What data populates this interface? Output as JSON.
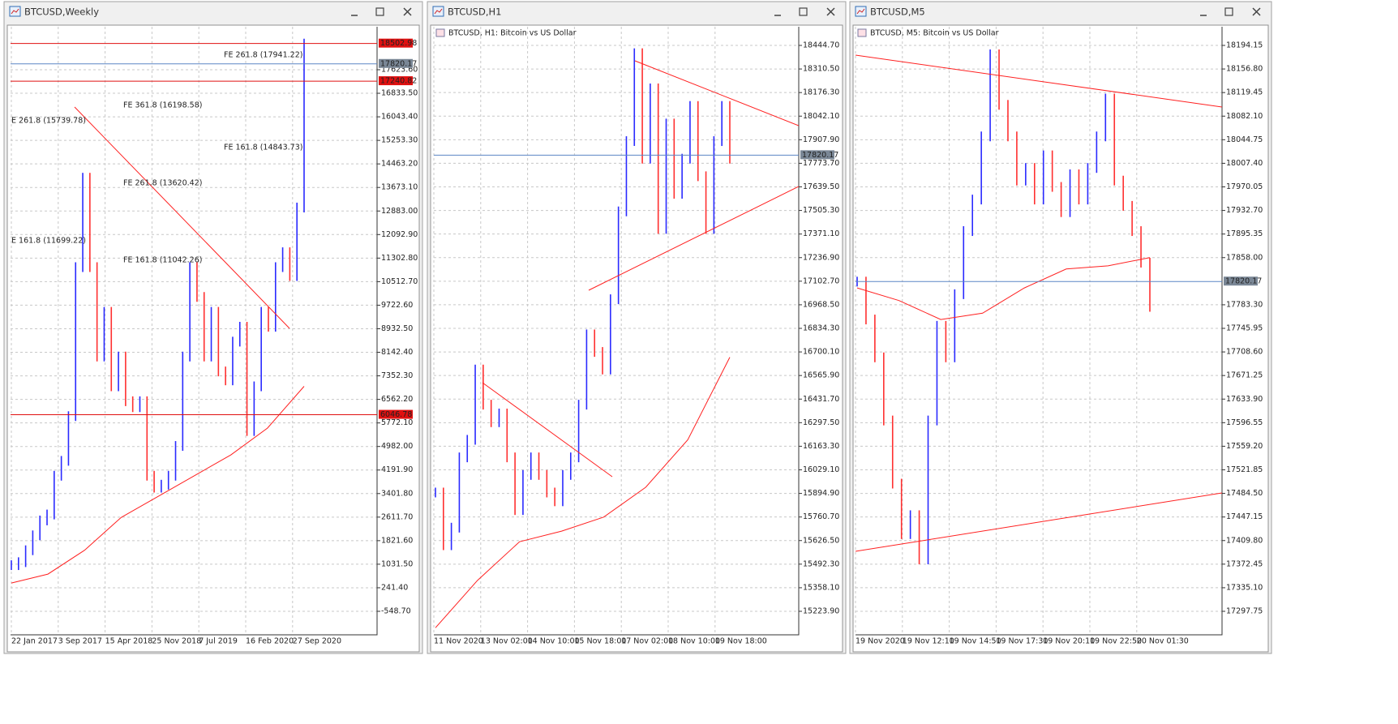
{
  "windows": [
    {
      "title": "BTCUSD,Weekly",
      "yticks": [
        {
          "value": 17623.6,
          "label": "17623.60"
        },
        {
          "value": 16833.5,
          "label": "16833.50"
        },
        {
          "value": 16043.4,
          "label": "16043.40"
        },
        {
          "value": 15253.3,
          "label": "15253.30"
        },
        {
          "value": 14463.2,
          "label": "14463.20"
        },
        {
          "value": 13673.1,
          "label": "13673.10"
        },
        {
          "value": 12883,
          "label": "12883.00"
        },
        {
          "value": 12092.9,
          "label": "12092.90"
        },
        {
          "value": 11302.8,
          "label": "11302.80"
        },
        {
          "value": 10512.7,
          "label": "10512.70"
        },
        {
          "value": 9722.6,
          "label": "9722.60"
        },
        {
          "value": 8932.5,
          "label": "8932.50"
        },
        {
          "value": 8142.4,
          "label": "8142.40"
        },
        {
          "value": 7352.3,
          "label": "7352.30"
        },
        {
          "value": 6562.2,
          "label": "6562.20"
        },
        {
          "value": 5772.1,
          "label": "5772.10"
        },
        {
          "value": 4982,
          "label": "4982.00"
        },
        {
          "value": 4191.9,
          "label": "4191.90"
        },
        {
          "value": 3401.8,
          "label": "3401.80"
        },
        {
          "value": 2611.7,
          "label": "2611.70"
        },
        {
          "value": 1821.6,
          "label": "1821.60"
        },
        {
          "value": 1031.5,
          "label": "1031.50"
        },
        {
          "value": 241.4,
          "label": "241.40"
        },
        {
          "value": -548.7,
          "label": "-548.70"
        }
      ],
      "xlabels": [
        "22 Jan 2017",
        "3 Sep 2017",
        "15 Apr 2018",
        "25 Nov 2018",
        "7 Jul 2019",
        "16 Feb 2020",
        "27 Sep 2020"
      ],
      "levels": [
        {
          "value": 18502.98,
          "label": "18502.98",
          "color": "#e01010"
        },
        {
          "value": 17820.17,
          "label": "17820.17",
          "color": "#7a8796"
        },
        {
          "value": 17240.82,
          "label": "17240.82",
          "color": "#e01010"
        },
        {
          "value": 6046.78,
          "label": "6046.78",
          "color": "#e01010"
        }
      ],
      "annotations": [
        "FE 261.8 (17941.22)",
        "FE 361.8 (16198.58)",
        "E 261.8 (15739.78)",
        "FE 161.8 (14843.73)",
        "FE 261.8 (13620.42)",
        "E 161.8 (11699.22)",
        "FE 161.8 (11042.26)"
      ],
      "closes": [
        1000,
        1100,
        1500,
        2000,
        2500,
        2700,
        4000,
        4500,
        6000,
        11000,
        14000,
        11000,
        8000,
        9500,
        7000,
        8000,
        6500,
        6300,
        6500,
        4000,
        3600,
        3700,
        4000,
        5000,
        8000,
        11000,
        10000,
        8000,
        9500,
        7500,
        7200,
        8500,
        9000,
        5500,
        7000,
        9500,
        9000,
        11000,
        11500,
        10700,
        13000,
        18500
      ],
      "ma": [
        400,
        700,
        1500,
        2600,
        3300,
        4000,
        4700,
        5600,
        7000
      ]
    },
    {
      "title": "BTCUSD,H1",
      "label": "BTCUSD, H1:  Bitcoin vs US Dollar",
      "yticks": [
        {
          "value": 18444.7,
          "label": "18444.70"
        },
        {
          "value": 18310.5,
          "label": "18310.50"
        },
        {
          "value": 18176.3,
          "label": "18176.30"
        },
        {
          "value": 18042.1,
          "label": "18042.10"
        },
        {
          "value": 17907.9,
          "label": "17907.90"
        },
        {
          "value": 17773.7,
          "label": "17773.70"
        },
        {
          "value": 17639.5,
          "label": "17639.50"
        },
        {
          "value": 17505.3,
          "label": "17505.30"
        },
        {
          "value": 17371.1,
          "label": "17371.10"
        },
        {
          "value": 17236.9,
          "label": "17236.90"
        },
        {
          "value": 17102.7,
          "label": "17102.70"
        },
        {
          "value": 16968.5,
          "label": "16968.50"
        },
        {
          "value": 16834.3,
          "label": "16834.30"
        },
        {
          "value": 16700.1,
          "label": "16700.10"
        },
        {
          "value": 16565.9,
          "label": "16565.90"
        },
        {
          "value": 16431.7,
          "label": "16431.70"
        },
        {
          "value": 16297.5,
          "label": "16297.50"
        },
        {
          "value": 16163.3,
          "label": "16163.30"
        },
        {
          "value": 16029.1,
          "label": "16029.10"
        },
        {
          "value": 15894.9,
          "label": "15894.90"
        },
        {
          "value": 15760.7,
          "label": "15760.70"
        },
        {
          "value": 15626.5,
          "label": "15626.50"
        },
        {
          "value": 15492.3,
          "label": "15492.30"
        },
        {
          "value": 15358.1,
          "label": "15358.10"
        },
        {
          "value": 15223.9,
          "label": "15223.90"
        }
      ],
      "xlabels": [
        "11 Nov 2020",
        "13 Nov 02:00",
        "14 Nov 10:00",
        "15 Nov 18:00",
        "17 Nov 02:00",
        "18 Nov 10:00",
        "19 Nov 18:00"
      ],
      "levels": [
        {
          "value": 17820.17,
          "label": "17820.17",
          "color": "#7a8796"
        }
      ],
      "closes": [
        15900,
        15600,
        15700,
        16100,
        16200,
        16600,
        16400,
        16300,
        16350,
        16100,
        15800,
        16000,
        16100,
        16000,
        15900,
        15850,
        16000,
        16100,
        16400,
        16800,
        16700,
        16600,
        17000,
        17500,
        17900,
        18400,
        17800,
        18200,
        17400,
        18000,
        17600,
        17800,
        18100,
        17700,
        17400,
        17900,
        18100,
        17800
      ],
      "ma": [
        15130,
        15400,
        15620,
        15680,
        15760,
        15930,
        16200,
        16670
      ]
    },
    {
      "title": "BTCUSD,M5",
      "label": "BTCUSD, M5:  Bitcoin vs US Dollar",
      "yticks": [
        {
          "value": 18194.15,
          "label": "18194.15"
        },
        {
          "value": 18156.8,
          "label": "18156.80"
        },
        {
          "value": 18119.45,
          "label": "18119.45"
        },
        {
          "value": 18082.1,
          "label": "18082.10"
        },
        {
          "value": 18044.75,
          "label": "18044.75"
        },
        {
          "value": 18007.4,
          "label": "18007.40"
        },
        {
          "value": 17970.05,
          "label": "17970.05"
        },
        {
          "value": 17932.7,
          "label": "17932.70"
        },
        {
          "value": 17895.35,
          "label": "17895.35"
        },
        {
          "value": 17858,
          "label": "17858.00"
        },
        {
          "value": 17783.3,
          "label": "17783.30"
        },
        {
          "value": 17745.95,
          "label": "17745.95"
        },
        {
          "value": 17708.6,
          "label": "17708.60"
        },
        {
          "value": 17671.25,
          "label": "17671.25"
        },
        {
          "value": 17633.9,
          "label": "17633.90"
        },
        {
          "value": 17596.55,
          "label": "17596.55"
        },
        {
          "value": 17559.2,
          "label": "17559.20"
        },
        {
          "value": 17521.85,
          "label": "17521.85"
        },
        {
          "value": 17484.5,
          "label": "17484.50"
        },
        {
          "value": 17447.15,
          "label": "17447.15"
        },
        {
          "value": 17409.8,
          "label": "17409.80"
        },
        {
          "value": 17372.45,
          "label": "17372.45"
        },
        {
          "value": 17335.1,
          "label": "17335.10"
        },
        {
          "value": 17297.75,
          "label": "17297.75"
        }
      ],
      "xlabels": [
        "19 Nov 2020",
        "19 Nov 12:10",
        "19 Nov 14:50",
        "19 Nov 17:30",
        "19 Nov 20:10",
        "19 Nov 22:50",
        "20 Nov 01:30"
      ],
      "levels": [
        {
          "value": 17820.17,
          "label": "17820.17",
          "color": "#7a8796"
        }
      ],
      "closes": [
        17820,
        17760,
        17700,
        17600,
        17500,
        17420,
        17450,
        17380,
        17600,
        17750,
        17700,
        17800,
        17900,
        17950,
        18050,
        18180,
        18100,
        18050,
        17980,
        18000,
        17950,
        18020,
        17970,
        17930,
        17990,
        17950,
        18000,
        18050,
        18110,
        17980,
        17940,
        17900,
        17850,
        17780
      ],
      "ma": [
        17810,
        17790,
        17760,
        17770,
        17810,
        17840,
        17845,
        17858
      ]
    }
  ]
}
